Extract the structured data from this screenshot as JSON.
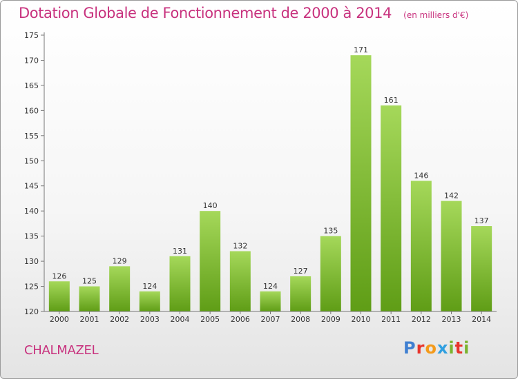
{
  "header": {
    "title": "Dotation Globale de Fonctionnement de 2000 à 2014",
    "subtitle": "(en milliers d'€)"
  },
  "footer": {
    "commune": "CHALMAZEL",
    "brand": "Proxiti"
  },
  "colors": {
    "bar_light": "#a5d85a",
    "bar_dark": "#5f9d16",
    "title": "#c8327e",
    "brand_letters": [
      "#3f7fd1",
      "#e8332a",
      "#f49a1a",
      "#2f9fe0",
      "#7ab32e",
      "#e8332a",
      "#7ab32e"
    ]
  },
  "chart_data": {
    "type": "bar",
    "categories": [
      "2000",
      "2001",
      "2002",
      "2003",
      "2004",
      "2005",
      "2006",
      "2007",
      "2008",
      "2009",
      "2010",
      "2011",
      "2012",
      "2013",
      "2014"
    ],
    "values": [
      126,
      125,
      129,
      124,
      131,
      140,
      132,
      124,
      127,
      135,
      171,
      161,
      146,
      142,
      137
    ],
    "ylim": [
      120,
      175
    ],
    "yticks": [
      120,
      125,
      130,
      135,
      140,
      145,
      150,
      155,
      160,
      165,
      170,
      175
    ],
    "grid": false,
    "legend": "none",
    "xlabel": "",
    "ylabel": ""
  }
}
